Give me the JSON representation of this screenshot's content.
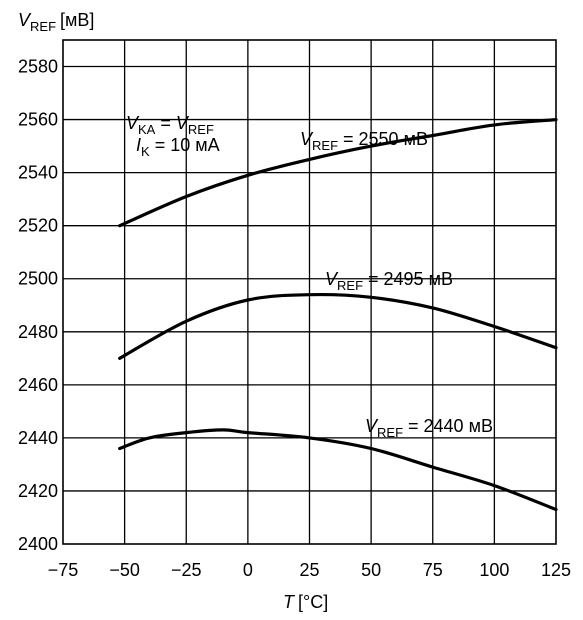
{
  "chart_data": {
    "type": "line",
    "ylabel": {
      "var": "V",
      "sub": "REF",
      "unit": "[мВ]"
    },
    "xlabel": {
      "var": "T",
      "unit": "[°C]"
    },
    "xlim": [
      -75,
      125
    ],
    "ylim": [
      2400,
      2590
    ],
    "x_ticks": [
      -75,
      -50,
      -25,
      0,
      25,
      50,
      75,
      100,
      125
    ],
    "y_ticks": [
      2400,
      2420,
      2440,
      2460,
      2480,
      2500,
      2520,
      2540,
      2560,
      2580
    ],
    "grid": true,
    "condition_lines": [
      {
        "a": "V",
        "asub": "KA",
        "eq": " = ",
        "b": "V",
        "bsub": "REF"
      },
      {
        "a": "I",
        "asub": "K",
        "eq": " = 10 мА",
        "b": "",
        "bsub": ""
      }
    ],
    "series": [
      {
        "name": "V_REF = 2550 мВ",
        "label": {
          "var": "V",
          "sub": "REF",
          "text": " = 2550 мВ"
        },
        "x": [
          -52,
          -25,
          0,
          25,
          50,
          75,
          100,
          125
        ],
        "y": [
          2520,
          2531,
          2539,
          2545,
          2550,
          2554,
          2558,
          2560
        ]
      },
      {
        "name": "V_REF = 2495 мВ",
        "label": {
          "var": "V",
          "sub": "REF",
          "text": " = 2495 мВ"
        },
        "x": [
          -52,
          -25,
          0,
          25,
          50,
          75,
          100,
          125
        ],
        "y": [
          2470,
          2484,
          2492,
          2494,
          2493,
          2489,
          2482,
          2474
        ]
      },
      {
        "name": "V_REF = 2440 мВ",
        "label": {
          "var": "V",
          "sub": "REF",
          "text": " = 2440 мВ"
        },
        "x": [
          -52,
          -40,
          -25,
          -10,
          0,
          25,
          50,
          75,
          100,
          125
        ],
        "y": [
          2436,
          2440,
          2442,
          2443,
          2442,
          2440,
          2436,
          2429,
          2422,
          2413
        ]
      }
    ]
  }
}
